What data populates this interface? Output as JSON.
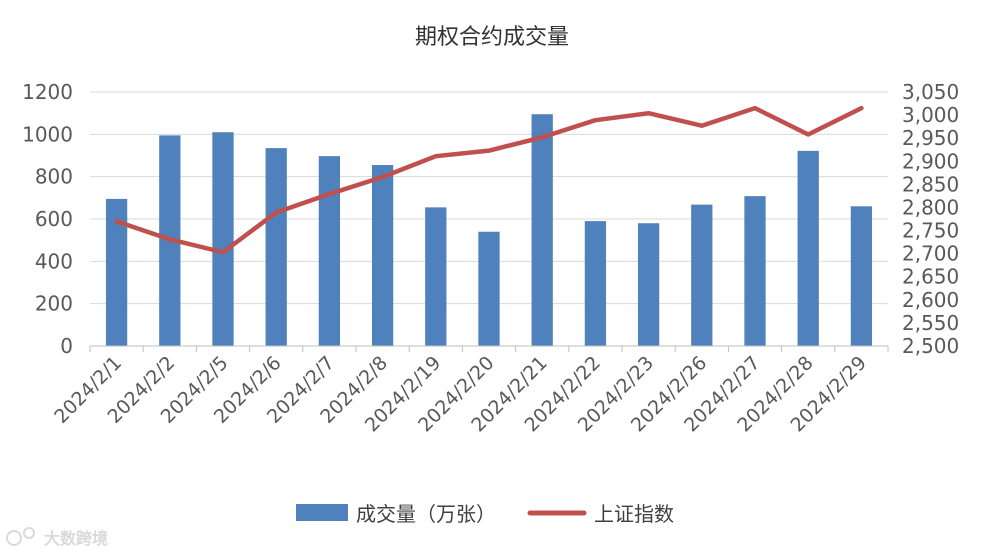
{
  "chart_data": {
    "type": "bar+line",
    "title": "期权合约成交量",
    "categories": [
      "2024/2/1",
      "2024/2/2",
      "2024/2/5",
      "2024/2/6",
      "2024/2/7",
      "2024/2/8",
      "2024/2/19",
      "2024/2/20",
      "2024/2/21",
      "2024/2/22",
      "2024/2/23",
      "2024/2/26",
      "2024/2/27",
      "2024/2/28",
      "2024/2/29"
    ],
    "series": [
      {
        "name": "成交量（万张）",
        "type": "bar",
        "axis": "left",
        "color": "#4f81bd",
        "values": [
          695,
          995,
          1010,
          935,
          897,
          855,
          655,
          540,
          1095,
          590,
          580,
          668,
          708,
          922,
          660
        ]
      },
      {
        "name": "上证指数",
        "type": "line",
        "axis": "right",
        "color": "#c0504d",
        "values": [
          2770,
          2731,
          2703,
          2789,
          2829,
          2866,
          2911,
          2923,
          2952,
          2989,
          3004,
          2977,
          3015,
          2958,
          3015
        ]
      }
    ],
    "y_left": {
      "min": 0,
      "max": 1200,
      "step": 200,
      "ticks": [
        "0",
        "200",
        "400",
        "600",
        "800",
        "1000",
        "1200"
      ]
    },
    "y_right": {
      "min": 2500,
      "max": 3050,
      "step": 50,
      "ticks": [
        "2,500",
        "2,550",
        "2,600",
        "2,650",
        "2,700",
        "2,750",
        "2,800",
        "2,850",
        "2,900",
        "2,950",
        "3,000",
        "3,050"
      ]
    },
    "grid": true,
    "legend": "bottom"
  },
  "watermark": "大数跨境",
  "watermark_icon": "logo-icon"
}
